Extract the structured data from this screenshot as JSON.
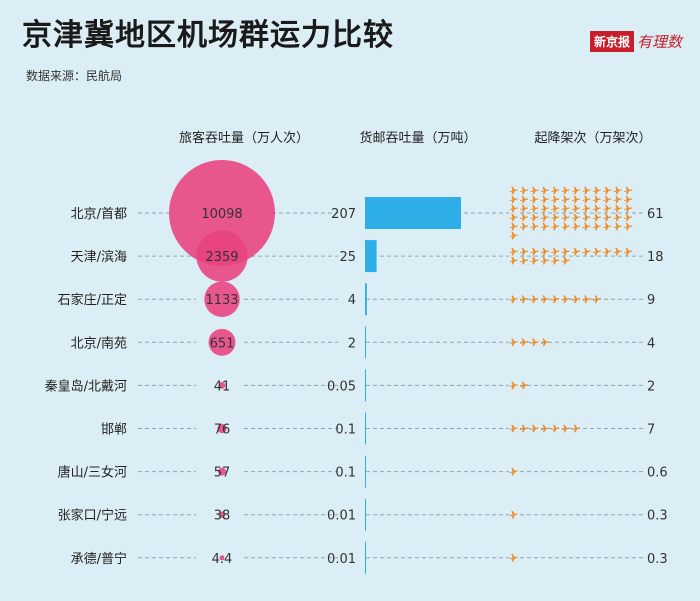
{
  "header": {
    "title": "京津冀地区机场群运力比较",
    "source": "数据来源：民航局",
    "brand": "新京报",
    "brand_sub": "有理数"
  },
  "colors": {
    "passenger": "#e8427f",
    "cargo": "#2eaee6",
    "flights": "#f08a24",
    "guide": "#8aa7b3"
  },
  "chart_data": {
    "type": "table",
    "categories": [
      "北京/首都",
      "天津/滨海",
      "石家庄/正定",
      "北京/南苑",
      "秦皇岛/北戴河",
      "邯郸",
      "唐山/三女河",
      "张家口/宁远",
      "承德/普宁"
    ],
    "series": [
      {
        "name": "旅客吞吐量（万人次）",
        "type": "bubble",
        "values": [
          10098,
          2359,
          1133,
          651,
          41,
          76,
          57,
          38,
          4.4
        ],
        "labels": [
          "10098",
          "2359",
          "1133",
          "651",
          "41",
          "76",
          "57",
          "38",
          "4.4"
        ]
      },
      {
        "name": "货邮吞吐量（万吨）",
        "type": "bar",
        "values": [
          207,
          25,
          4,
          2,
          0.05,
          0.1,
          0.1,
          0.01,
          0.01
        ],
        "labels": [
          "207",
          "25",
          "4",
          "2",
          "0.05",
          "0.1",
          "0.1",
          "0.01",
          "0.01"
        ]
      },
      {
        "name": "起降架次（万架次）",
        "type": "pictogram",
        "icon": "airplane-icon",
        "values": [
          61,
          18,
          9,
          4,
          2,
          7,
          0.6,
          0.3,
          0.3
        ],
        "labels": [
          "61",
          "18",
          "9",
          "4",
          "2",
          "7",
          "0.6",
          "0.3",
          "0.3"
        ]
      }
    ]
  }
}
